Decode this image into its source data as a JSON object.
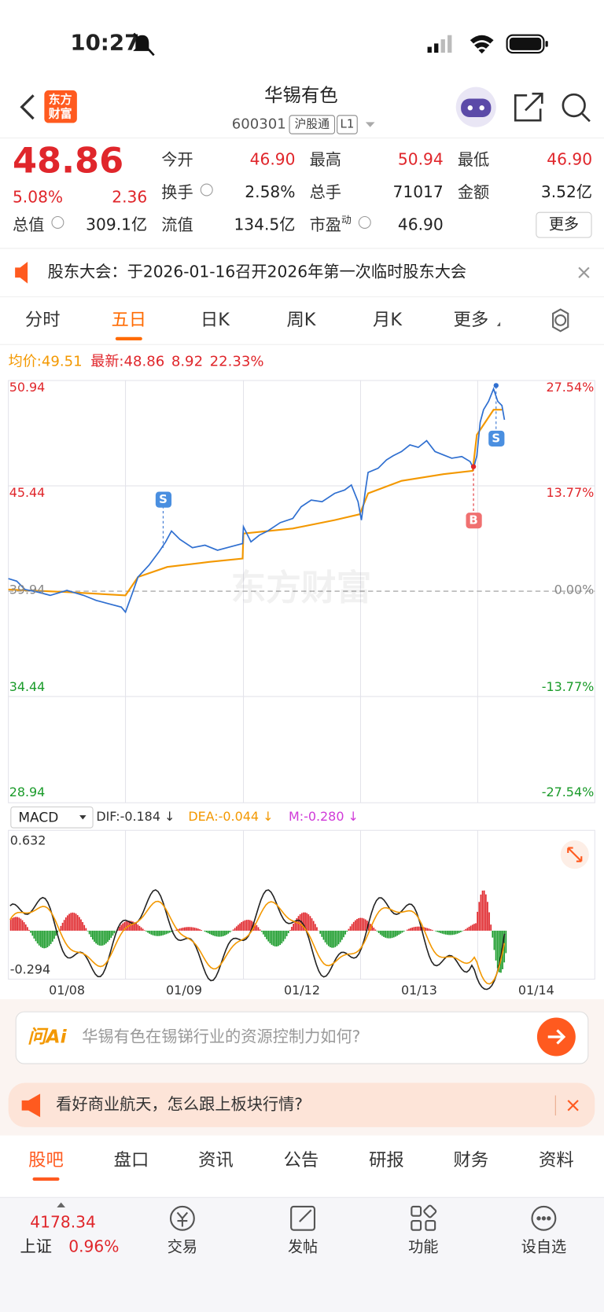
{
  "status_bar": {
    "time": "10:27"
  },
  "header": {
    "logo": [
      "东方",
      "财富"
    ],
    "title": "华锡有色",
    "code": "600301",
    "tags": [
      "沪股通",
      "L1"
    ]
  },
  "quote": {
    "price": "48.86",
    "change_pct": "5.08%",
    "change": "2.36",
    "fields": [
      {
        "label": "今开",
        "value": "46.90"
      },
      {
        "label": "最高",
        "value": "50.94"
      },
      {
        "label": "最低",
        "value": "46.90"
      },
      {
        "label": "换手",
        "value": "2.58%"
      },
      {
        "label": "总手",
        "value": "71017"
      },
      {
        "label": "金额",
        "value": "3.52亿"
      },
      {
        "label": "总值",
        "value": "309.1亿"
      },
      {
        "label": "流值",
        "value": "134.5亿"
      },
      {
        "label": "市盈",
        "sup": "动",
        "value": "46.90"
      }
    ],
    "more": "更多"
  },
  "notice": "股东大会：于2026-01-16召开2026年第一次临时股东大会",
  "tabs": [
    "分时",
    "五日",
    "日K",
    "周K",
    "月K",
    "更多"
  ],
  "chart": {
    "avg_label": "均价:",
    "avg": "49.51",
    "latest_label": "最新:",
    "latest": "48.86",
    "change": "8.92",
    "pct": "22.33%",
    "y_left": [
      "50.94",
      "45.44",
      "39.94",
      "34.44",
      "28.94"
    ],
    "y_right": [
      "27.54%",
      "13.77%",
      "0.00%",
      "-13.77%",
      "-27.54%"
    ],
    "markers": [
      "S",
      "S",
      "B"
    ],
    "watermark": "东方财富"
  },
  "macd": {
    "selector": "MACD",
    "dif": "DIF:-0.184 ↓",
    "dea": "DEA:-0.044 ↓",
    "m": "M:-0.280 ↓",
    "top": "0.632",
    "bottom": "-0.294"
  },
  "x_labels": [
    "01/08",
    "01/09",
    "01/12",
    "01/13",
    "01/14"
  ],
  "ai": {
    "brand": "问Ai",
    "prompt": "华锡有色在锡锑行业的资源控制力如何?"
  },
  "banner": "看好商业航天，怎么跟上板块行情?",
  "bottom_tabs": [
    "股吧",
    "盘口",
    "资讯",
    "公告",
    "研报",
    "财务",
    "资料"
  ],
  "nav": {
    "index_value": "4178.34",
    "index_name": "上证",
    "index_pct": "0.96%",
    "items": [
      "交易",
      "发帖",
      "功能",
      "设自选"
    ]
  }
}
